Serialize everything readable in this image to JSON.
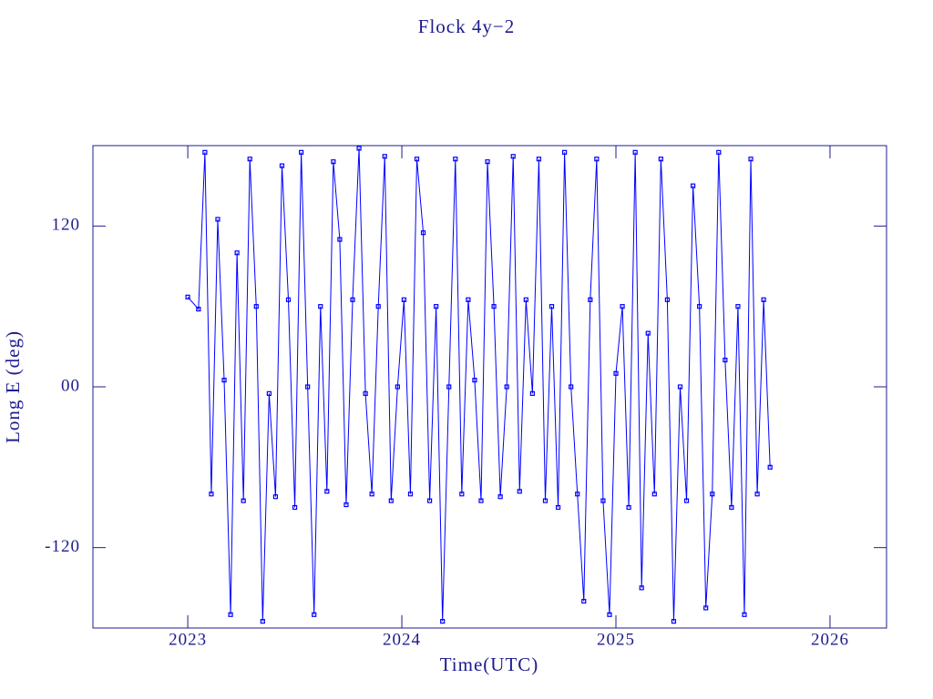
{
  "chart_data": {
    "type": "line",
    "title": "Flock 4y−2",
    "xlabel": "Time(UTC)",
    "ylabel": "Long E (deg)",
    "xlim": [
      2022.557,
      2026.264
    ],
    "ylim": [
      -180,
      180
    ],
    "xticks": [
      2023,
      2024,
      2025,
      2026
    ],
    "yticks": [
      -120,
      {
        "value": 0,
        "label": "00"
      },
      120
    ],
    "series": [
      {
        "color": "#0000ff",
        "x": [
          2023.0,
          2023.05,
          2023.08,
          2023.11,
          2023.14,
          2023.17,
          2023.2,
          2023.23,
          2023.26,
          2023.29,
          2023.32,
          2023.35,
          2023.38,
          2023.41,
          2023.44,
          2023.47,
          2023.5,
          2023.53,
          2023.56,
          2023.59,
          2023.62,
          2023.65,
          2023.68,
          2023.71,
          2023.74,
          2023.77,
          2023.8,
          2023.83,
          2023.86,
          2023.89,
          2023.92,
          2023.95,
          2023.98,
          2024.01,
          2024.04,
          2024.07,
          2024.1,
          2024.13,
          2024.16,
          2024.19,
          2024.22,
          2024.25,
          2024.28,
          2024.31,
          2024.34,
          2024.37,
          2024.4,
          2024.43,
          2024.46,
          2024.49,
          2024.52,
          2024.55,
          2024.58,
          2024.61,
          2024.64,
          2024.67,
          2024.7,
          2024.73,
          2024.76,
          2024.79,
          2024.82,
          2024.85,
          2024.88,
          2024.91,
          2024.94,
          2024.97,
          2025.0,
          2025.03,
          2025.06,
          2025.09,
          2025.12,
          2025.15,
          2025.18,
          2025.21,
          2025.24,
          2025.27,
          2025.3,
          2025.33,
          2025.36,
          2025.39,
          2025.42,
          2025.45,
          2025.48,
          2025.51,
          2025.54,
          2025.57,
          2025.6,
          2025.63,
          2025.66,
          2025.69,
          2025.72
        ],
        "values": [
          67,
          58,
          175,
          -80,
          125,
          5,
          -170,
          100,
          -85,
          170,
          60,
          -175,
          -5,
          -82,
          165,
          65,
          -90,
          175,
          0,
          -170,
          60,
          -78,
          168,
          110,
          -88,
          65,
          178,
          -5,
          -80,
          60,
          172,
          -85,
          0,
          65,
          -80,
          170,
          115,
          -85,
          60,
          -175,
          0,
          170,
          -80,
          65,
          5,
          -85,
          168,
          60,
          -82,
          0,
          172,
          -78,
          65,
          -5,
          170,
          -85,
          60,
          -90,
          175,
          0,
          -80,
          -160,
          65,
          170,
          -85,
          -170,
          10,
          60,
          -90,
          175,
          -150,
          40,
          -80,
          170,
          65,
          -175,
          0,
          -85,
          150,
          60,
          -165,
          -80,
          175,
          20,
          -90,
          60,
          -170,
          170,
          -80,
          65,
          -60
        ]
      }
    ]
  }
}
